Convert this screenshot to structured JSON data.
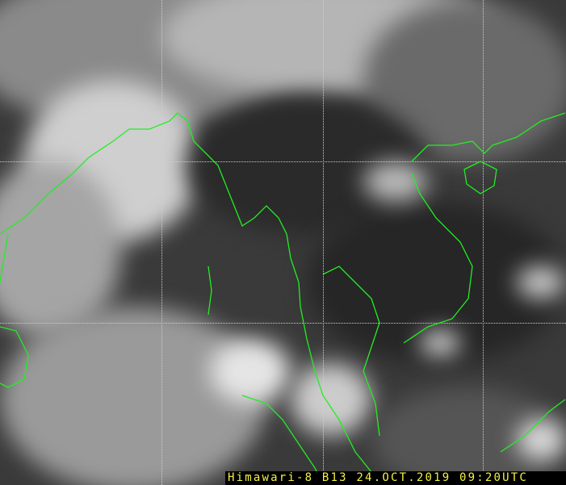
{
  "image": {
    "caption": "Himawari-8 B13 24.OCT.2019 09:20UTC",
    "coastline_color": "#22ee22",
    "caption_color": "#f4f040",
    "grid_style": "dotted"
  }
}
